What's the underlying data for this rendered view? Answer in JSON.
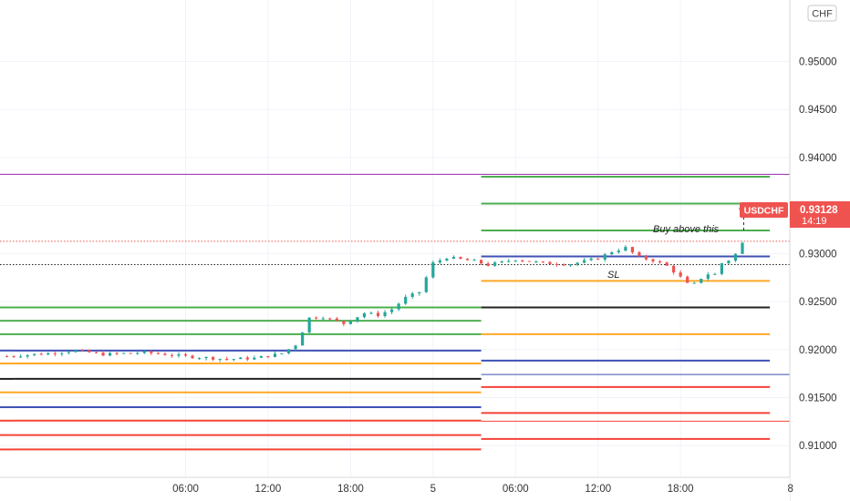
{
  "chart_data": {
    "type": "candlestick",
    "symbol": "USDCHF",
    "currency": "CHF",
    "current_price": "0.93128",
    "countdown": "14:19",
    "annotations": {
      "buy_note": "Buy above this",
      "stop_loss": "SL"
    },
    "y_axis": {
      "range": [
        0.9067,
        0.9564
      ],
      "ticks": [
        {
          "value": 0.91,
          "label": "0.91000"
        },
        {
          "value": 0.915,
          "label": "0.91500"
        },
        {
          "value": 0.92,
          "label": "0.92000"
        },
        {
          "value": 0.925,
          "label": "0.92500"
        },
        {
          "value": 0.93,
          "label": "0.93000"
        },
        {
          "value": 0.935,
          "label": "0.93500"
        },
        {
          "value": 0.94,
          "label": "0.94000"
        },
        {
          "value": 0.945,
          "label": "0.94500"
        },
        {
          "value": 0.95,
          "label": "0.95000"
        }
      ]
    },
    "x_axis": {
      "range_hours": [
        -7.5,
        50
      ],
      "ticks": [
        {
          "hours": 6,
          "label": "06:00"
        },
        {
          "hours": 12,
          "label": "12:00"
        },
        {
          "hours": 18,
          "label": "18:00"
        },
        {
          "hours": 24,
          "label": "5"
        },
        {
          "hours": 30,
          "label": "06:00"
        },
        {
          "hours": 36,
          "label": "12:00"
        },
        {
          "hours": 42,
          "label": "18:00"
        },
        {
          "hours": 50,
          "label": "8"
        }
      ]
    },
    "colors": {
      "up": "#26a69a",
      "down": "#ef5350",
      "price_tag": "#ef5350",
      "purple": "#9c27b0",
      "green": "#4caf50",
      "blue": "#3f51b5",
      "orange": "#ffa726",
      "red": "#f44336",
      "black": "#222222"
    },
    "pivot_sets": [
      {
        "x_hours": [
          -7.5,
          -6.5
        ],
        "levels": [
          {
            "price": 0.92439,
            "color": "green"
          },
          {
            "price": 0.923,
            "color": "green"
          },
          {
            "price": 0.9216,
            "color": "green"
          },
          {
            "price": 0.9199,
            "color": "blue"
          },
          {
            "price": 0.91855,
            "color": "orange"
          },
          {
            "price": 0.91695,
            "color": "black"
          },
          {
            "price": 0.91555,
            "color": "orange"
          },
          {
            "price": 0.914,
            "color": "blue"
          },
          {
            "price": 0.9126,
            "color": "red"
          },
          {
            "price": 0.9111,
            "color": "red"
          },
          {
            "price": 0.9096,
            "color": "red"
          }
        ]
      },
      {
        "x_hours": [
          -6.5,
          27.5
        ],
        "levels": [
          {
            "price": 0.92439,
            "color": "green"
          },
          {
            "price": 0.923,
            "color": "green"
          },
          {
            "price": 0.9216,
            "color": "green"
          },
          {
            "price": 0.9199,
            "color": "blue"
          },
          {
            "price": 0.91855,
            "color": "orange"
          },
          {
            "price": 0.91695,
            "color": "black"
          },
          {
            "price": 0.91555,
            "color": "orange"
          },
          {
            "price": 0.914,
            "color": "blue"
          },
          {
            "price": 0.9126,
            "color": "red"
          },
          {
            "price": 0.9111,
            "color": "red"
          },
          {
            "price": 0.9096,
            "color": "red"
          }
        ]
      },
      {
        "x_hours": [
          27.5,
          48.5
        ],
        "levels": [
          {
            "price": 0.938,
            "color": "green"
          },
          {
            "price": 0.9352,
            "color": "green"
          },
          {
            "price": 0.9324,
            "color": "green"
          },
          {
            "price": 0.9297,
            "color": "blue"
          },
          {
            "price": 0.92715,
            "color": "orange"
          },
          {
            "price": 0.92439,
            "color": "black"
          },
          {
            "price": 0.9216,
            "color": "orange"
          },
          {
            "price": 0.91885,
            "color": "blue"
          },
          {
            "price": 0.9161,
            "color": "red"
          },
          {
            "price": 0.9134,
            "color": "red"
          },
          {
            "price": 0.9107,
            "color": "red"
          }
        ]
      }
    ],
    "horizontal_lines": [
      {
        "price": 0.93825,
        "color": "purple",
        "style": "solid"
      },
      {
        "price": 0.9174,
        "color": "blue",
        "style": "solid",
        "x_from_hours": 27.5
      },
      {
        "price": 0.91255,
        "color": "red",
        "style": "solid",
        "x_from_hours": 27.5
      },
      {
        "price": 0.93128,
        "color": "price_tag",
        "style": "dotted"
      },
      {
        "price": 0.92885,
        "color": "black",
        "style": "dotted"
      }
    ],
    "projection": {
      "from_hours": 46.6,
      "from_price": 0.9324,
      "to_price": 0.9352,
      "arrow_to_hours": 50.6
    },
    "close_prices": [
      [
        -7.0,
        0.9193
      ],
      [
        -4.0,
        0.9196
      ],
      [
        -2.0,
        0.9199
      ],
      [
        0.0,
        0.9195
      ],
      [
        3.0,
        0.9197
      ],
      [
        6.0,
        0.9193
      ],
      [
        9.0,
        0.919
      ],
      [
        11.0,
        0.9191
      ],
      [
        13.0,
        0.9196
      ],
      [
        14.0,
        0.9205
      ],
      [
        15.0,
        0.9233
      ],
      [
        16.0,
        0.9234
      ],
      [
        17.5,
        0.9227
      ],
      [
        19.0,
        0.9238
      ],
      [
        20.0,
        0.9236
      ],
      [
        21.0,
        0.9242
      ],
      [
        22.0,
        0.9254
      ],
      [
        23.0,
        0.926
      ],
      [
        24.0,
        0.929
      ],
      [
        25.0,
        0.9296
      ],
      [
        27.0,
        0.9292
      ],
      [
        28.0,
        0.9288
      ],
      [
        30.0,
        0.9294
      ],
      [
        32.0,
        0.929
      ],
      [
        34.0,
        0.9289
      ],
      [
        36.0,
        0.9295
      ],
      [
        37.0,
        0.9302
      ],
      [
        38.0,
        0.9306
      ],
      [
        39.0,
        0.9296
      ],
      [
        40.0,
        0.9293
      ],
      [
        41.0,
        0.9287
      ],
      [
        41.8,
        0.9278
      ],
      [
        42.6,
        0.9267
      ],
      [
        43.2,
        0.9269
      ],
      [
        43.8,
        0.928
      ],
      [
        44.4,
        0.9276
      ],
      [
        45.0,
        0.929
      ],
      [
        45.8,
        0.9295
      ],
      [
        46.6,
        0.93128
      ]
    ]
  }
}
